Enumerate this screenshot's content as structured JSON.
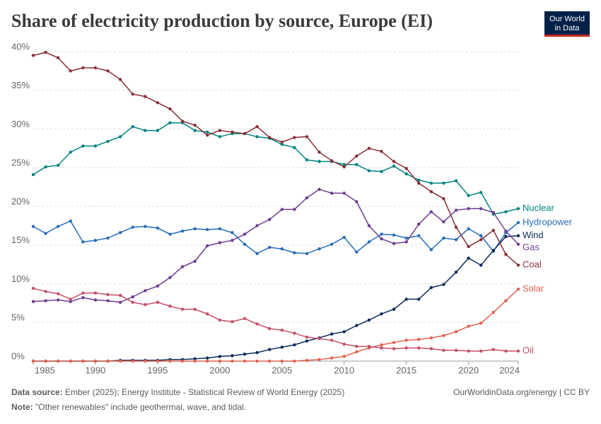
{
  "chart_data": {
    "type": "line",
    "title": "Share of electricity production by source, Europe (EI)",
    "logo": [
      "Our World",
      "in Data"
    ],
    "x": [
      1985,
      1986,
      1987,
      1988,
      1989,
      1990,
      1991,
      1992,
      1993,
      1994,
      1995,
      1996,
      1997,
      1998,
      1999,
      2000,
      2001,
      2002,
      2003,
      2004,
      2005,
      2006,
      2007,
      2008,
      2009,
      2010,
      2011,
      2012,
      2013,
      2014,
      2015,
      2016,
      2017,
      2018,
      2019,
      2020,
      2021,
      2022,
      2023,
      2024
    ],
    "series": [
      {
        "name": "Nuclear",
        "color": "#00847e",
        "values": [
          24.1,
          25.1,
          25.3,
          27.0,
          27.8,
          27.8,
          28.4,
          29.0,
          30.3,
          29.8,
          29.8,
          30.8,
          30.8,
          29.8,
          29.6,
          29.0,
          29.4,
          29.4,
          29.0,
          28.8,
          28.0,
          27.6,
          26.0,
          25.8,
          25.8,
          25.4,
          25.4,
          24.6,
          24.5,
          25.2,
          24.2,
          23.4,
          23.0,
          23.0,
          23.3,
          21.4,
          21.8,
          19.0,
          19.3,
          19.7
        ]
      },
      {
        "name": "Hydropower",
        "color": "#286bbb",
        "values": [
          17.4,
          16.5,
          17.4,
          18.1,
          15.4,
          15.6,
          15.9,
          16.6,
          17.3,
          17.4,
          17.2,
          16.4,
          16.8,
          17.1,
          17.0,
          17.1,
          16.6,
          15.1,
          13.9,
          14.7,
          14.5,
          14.0,
          13.9,
          14.5,
          15.1,
          16.0,
          14.1,
          15.4,
          16.4,
          16.3,
          15.9,
          16.2,
          14.4,
          15.9,
          15.7,
          17.1,
          16.2,
          14.2,
          16.6,
          17.9
        ]
      },
      {
        "name": "Wind",
        "color": "#0d2b5b",
        "values": [
          0,
          0,
          0,
          0,
          0,
          0,
          0,
          0.1,
          0.1,
          0.1,
          0.1,
          0.2,
          0.2,
          0.3,
          0.4,
          0.6,
          0.7,
          0.9,
          1.1,
          1.5,
          1.8,
          2.1,
          2.6,
          3.0,
          3.5,
          3.8,
          4.6,
          5.3,
          6.1,
          6.7,
          8.0,
          8.0,
          9.5,
          9.9,
          11.5,
          13.3,
          12.4,
          14.3,
          16.1,
          16.2
        ]
      },
      {
        "name": "Gas",
        "color": "#6d3e91",
        "values": [
          7.7,
          7.8,
          7.9,
          7.7,
          8.2,
          7.9,
          7.8,
          7.6,
          8.3,
          9.1,
          9.7,
          10.8,
          12.2,
          12.9,
          14.9,
          15.3,
          15.6,
          16.4,
          17.5,
          18.3,
          19.6,
          19.6,
          21.1,
          22.2,
          21.7,
          21.7,
          20.6,
          17.5,
          15.8,
          15.2,
          15.4,
          17.7,
          19.3,
          18.0,
          19.5,
          19.7,
          19.7,
          19.2,
          16.8,
          15.1
        ]
      },
      {
        "name": "Coal",
        "color": "#883039",
        "values": [
          39.5,
          39.9,
          39.2,
          37.5,
          37.9,
          37.9,
          37.5,
          36.4,
          34.5,
          34.2,
          33.4,
          32.6,
          31.0,
          30.5,
          29.2,
          29.8,
          29.6,
          29.4,
          30.3,
          28.9,
          28.3,
          28.9,
          29.0,
          27.0,
          25.9,
          25.1,
          26.5,
          27.5,
          27.1,
          25.8,
          24.9,
          23.0,
          21.9,
          21.0,
          17.3,
          14.8,
          15.7,
          16.9,
          13.8,
          12.4
        ]
      },
      {
        "name": "Solar",
        "color": "#e0624f",
        "values": [
          0,
          0,
          0,
          0,
          0,
          0,
          0,
          0,
          0,
          0,
          0,
          0,
          0,
          0,
          0,
          0,
          0,
          0,
          0,
          0,
          0,
          0,
          0.1,
          0.2,
          0.4,
          0.6,
          1.2,
          1.7,
          2.1,
          2.4,
          2.7,
          2.8,
          3.0,
          3.3,
          3.8,
          4.5,
          4.9,
          6.3,
          7.8,
          9.3
        ]
      },
      {
        "name": "Oil",
        "color": "#c44f67",
        "values": [
          9.4,
          9.0,
          8.7,
          8.0,
          8.8,
          8.8,
          8.6,
          8.5,
          7.6,
          7.3,
          7.6,
          7.1,
          6.7,
          6.7,
          6.1,
          5.3,
          5.1,
          5.5,
          4.8,
          4.2,
          4.0,
          3.6,
          3.1,
          2.9,
          2.7,
          2.2,
          1.9,
          1.9,
          1.7,
          1.6,
          1.7,
          1.7,
          1.6,
          1.4,
          1.4,
          1.3,
          1.3,
          1.5,
          1.3,
          1.3
        ]
      }
    ],
    "xlim": [
      1985,
      2024
    ],
    "xticks": [
      1985,
      1990,
      1995,
      2000,
      2005,
      2010,
      2015,
      2020,
      2024
    ],
    "ylim": [
      0,
      40
    ],
    "yticks": [
      {
        "value": 0,
        "label": "0%"
      },
      {
        "value": 5,
        "label": "5%"
      },
      {
        "value": 10,
        "label": "10%"
      },
      {
        "value": 15,
        "label": "15%"
      },
      {
        "value": 20,
        "label": "20%"
      },
      {
        "value": 25,
        "label": "25%"
      },
      {
        "value": 30,
        "label": "30%"
      },
      {
        "value": 35,
        "label": "35%"
      },
      {
        "value": 40,
        "label": "40%"
      }
    ],
    "grid": true,
    "source_label": "Data source:",
    "source": "Ember (2025); Energy Institute - Statistical Review of World Energy (2025)",
    "credit": "OurWorldinData.org/energy | CC BY",
    "note_label": "Note:",
    "note": "\"Other renewables\" include geothermal, wave, and tidal."
  }
}
